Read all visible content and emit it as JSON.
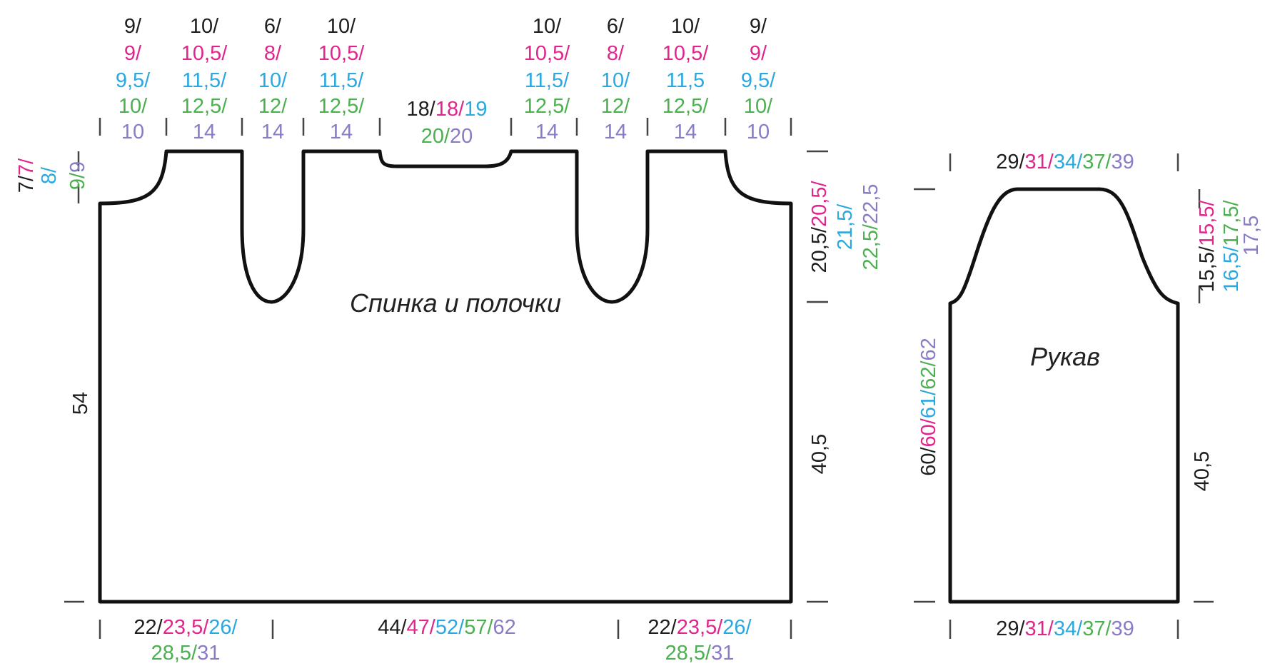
{
  "colors": {
    "s1": "#1e1e1e",
    "s2": "#e0258c",
    "s3": "#2aa8df",
    "s4": "#4caf50",
    "s5": "#8a7cc4"
  },
  "body_title": "Спинка и полочки",
  "sleeve_title": "Рукав",
  "top_columns": [
    {
      "line1": "9/",
      "line2": "9/",
      "line3": "9,5/",
      "line4": "10/",
      "line5": "10"
    },
    {
      "line1": "10/",
      "line2": "10,5/",
      "line3": "11,5/",
      "line4": "12,5/",
      "line5": "14"
    },
    {
      "line1": "6/",
      "line2": "8/",
      "line3": "10/",
      "line4": "12/",
      "line5": "14"
    },
    {
      "line1": "10/",
      "line2": "10,5/",
      "line3": "11,5/",
      "line4": "12,5/",
      "line5": "14"
    },
    {
      "line1": "10/",
      "line2": "10,5/",
      "line3": "11,5/",
      "line4": "12,5/",
      "line5": "14"
    },
    {
      "line1": "6/",
      "line2": "8/",
      "line3": "10/",
      "line4": "12/",
      "line5": "14"
    },
    {
      "line1": "10/",
      "line2": "10,5/",
      "line3": "11,5",
      "line4": "12,5/",
      "line5": "14"
    },
    {
      "line1": "9/",
      "line2": "9/",
      "line3": "9,5/",
      "line4": "10/",
      "line5": "10"
    }
  ],
  "neck": {
    "a": "18/",
    "b": "18/",
    "c": "19",
    "d": "20/",
    "e": "20"
  },
  "shoulder_left": {
    "a": "7/",
    "b": "7/",
    "c": "8/",
    "d": "9/",
    "e": "9"
  },
  "armhole_depth": {
    "a": "20,5/",
    "b": "20,5/",
    "c": "21,5/",
    "d": "22,5/",
    "e": "22,5"
  },
  "body_height_total": "54",
  "body_height_side": "40,5",
  "bottom_side": {
    "a": "22/",
    "b": "23,5/",
    "c": "26/",
    "d": "28,5/",
    "e": "31"
  },
  "bottom_middle": {
    "a": "44/",
    "b": "47/",
    "c": "52/",
    "d": "57/",
    "e": "62"
  },
  "sleeve_top": {
    "a": "29/",
    "b": "31/",
    "c": "34/",
    "d": "37/",
    "e": "39"
  },
  "sleeve_bottom": {
    "a": "29/",
    "b": "31/",
    "c": "34/",
    "d": "37/",
    "e": "39"
  },
  "sleeve_length": {
    "a": "60/",
    "b": "60/",
    "c": "61/",
    "d": "62/",
    "e": "62"
  },
  "sleeve_cap": {
    "a": "15,5/",
    "b": "15,5/",
    "c": "16,5/",
    "d": "17,5/",
    "e": "17,5"
  },
  "sleeve_side": "40,5"
}
